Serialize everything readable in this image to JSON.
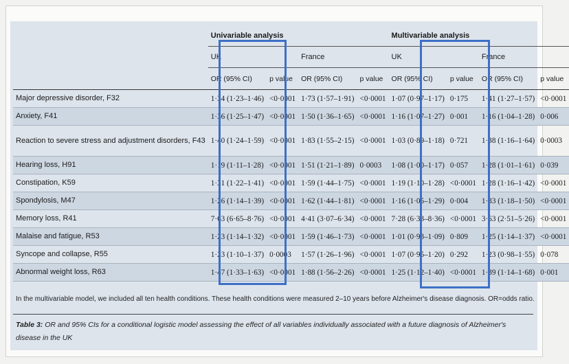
{
  "headers": {
    "group1": "Univariable analysis",
    "group2": "Multivariable analysis",
    "uk": "UK",
    "france": "France",
    "or": "OR (95% CI)",
    "pvalue": "p value"
  },
  "rows": [
    {
      "condition": "Major depressive disorder, F32",
      "u_uk_or": "1·34 (1·23–1·46)",
      "u_uk_p": "<0·0001",
      "u_fr_or": "1·73 (1·57–1·91)",
      "u_fr_p": "<0·0001",
      "m_uk_or": "1·07 (0·97–1·17)",
      "m_uk_p": "0·175",
      "m_fr_or": "1·41 (1·27–1·57)",
      "m_fr_p": "<0·0001"
    },
    {
      "condition": "Anxiety, F41",
      "u_uk_or": "1·36 (1·25–1·47)",
      "u_uk_p": "<0·0001",
      "u_fr_or": "1·50 (1·36–1·65)",
      "u_fr_p": "<0·0001",
      "m_uk_or": "1·16 (1·07–1·27)",
      "m_uk_p": "0·001",
      "m_fr_or": "1·16 (1·04–1·28)",
      "m_fr_p": "0·006"
    },
    {
      "condition": "Reaction to severe stress and adjustment disorders, F43",
      "u_uk_or": "1·40 (1·24–1·59)",
      "u_uk_p": "<0·0001",
      "u_fr_or": "1·83 (1·55–2·15)",
      "u_fr_p": "<0·0001",
      "m_uk_or": "1·03 (0·89–1·18)",
      "m_uk_p": "0·721",
      "m_fr_or": "1·38 (1·16–1·64)",
      "m_fr_p": "0·0003"
    },
    {
      "condition": "Hearing loss, H91",
      "u_uk_or": "1·19 (1·11–1·28)",
      "u_uk_p": "<0·0001",
      "u_fr_or": "1·51 (1·21–1·89)",
      "u_fr_p": "0·0003",
      "m_uk_or": "1·08 (1·00–1·17)",
      "m_uk_p": "0·057",
      "m_fr_or": "1·28 (1·01–1·61)",
      "m_fr_p": "0·039"
    },
    {
      "condition": "Constipation, K59",
      "u_uk_or": "1·31 (1·22–1·41)",
      "u_uk_p": "<0·0001",
      "u_fr_or": "1·59 (1·44–1·75)",
      "u_fr_p": "<0·0001",
      "m_uk_or": "1·19 (1·10–1·28)",
      "m_uk_p": "<0·0001",
      "m_fr_or": "1·28 (1·16–1·42)",
      "m_fr_p": "<0·0001"
    },
    {
      "condition": "Spondylosis, M47",
      "u_uk_or": "1·26 (1·14–1·39)",
      "u_uk_p": "<0·0001",
      "u_fr_or": "1·62 (1·44–1·81)",
      "u_fr_p": "<0·0001",
      "m_uk_or": "1·16 (1·05–1·29)",
      "m_uk_p": "0·004",
      "m_fr_or": "1·33 (1·18–1·50)",
      "m_fr_p": "<0·0001"
    },
    {
      "condition": "Memory loss, R41",
      "u_uk_or": "7·63 (6·65–8·76)",
      "u_uk_p": "<0·0001",
      "u_fr_or": "4·41 (3·07–6·34)",
      "u_fr_p": "<0·0001",
      "m_uk_or": "7·28 (6·33–8·36)",
      "m_uk_p": "<0·0001",
      "m_fr_or": "3·63 (2·51–5·26)",
      "m_fr_p": "<0·0001"
    },
    {
      "condition": "Malaise and fatigue, R53",
      "u_uk_or": "1·23 (1·14–1·32)",
      "u_uk_p": "<0·0001",
      "u_fr_or": "1·59 (1·46–1·73)",
      "u_fr_p": "<0·0001",
      "m_uk_or": "1·01 (0·93–1·09)",
      "m_uk_p": "0·809",
      "m_fr_or": "1·25 (1·14–1·37)",
      "m_fr_p": "<0·0001"
    },
    {
      "condition": "Syncope and collapse, R55",
      "u_uk_or": "1·23 (1·10–1·37)",
      "u_uk_p": "0·0003",
      "u_fr_or": "1·57 (1·26–1·96)",
      "u_fr_p": "<0·0001",
      "m_uk_or": "1·07 (0·95–1·20)",
      "m_uk_p": "0·292",
      "m_fr_or": "1·23 (0·98–1·55)",
      "m_fr_p": "0·078"
    },
    {
      "condition": "Abnormal weight loss, R63",
      "u_uk_or": "1·47 (1·33–1·63)",
      "u_uk_p": "<0·0001",
      "u_fr_or": "1·88 (1·56–2·26)",
      "u_fr_p": "<0·0001",
      "m_uk_or": "1·25 (1·12–1·40)",
      "m_uk_p": "<0·0001",
      "m_fr_or": "1·39 (1·14–1·68)",
      "m_fr_p": "0·001"
    }
  ],
  "footnote": "In the multivariable model, we included all ten health conditions. These health conditions were measured 2–10 years before Alzheimer's disease diagnosis. OR=odds ratio.",
  "caption": {
    "label": "Table 3:",
    "text": "OR and 95% CIs for a conditional logistic model assessing the effect of all variables individually associated with a future diagnosis of Alzheimer's disease in the UK"
  },
  "colors": {
    "highlight_box": "#3d6fc6",
    "panel": "#dde4ec",
    "row_stripe": "#cdd7e2"
  }
}
